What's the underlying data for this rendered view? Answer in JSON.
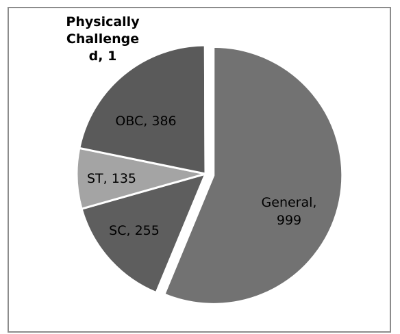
{
  "chart_data": {
    "type": "pie",
    "title": "",
    "slices": [
      {
        "label": "General",
        "value": 999,
        "color": "#727272",
        "label_lines": [
          "General,",
          "999"
        ]
      },
      {
        "label": "SC",
        "value": 255,
        "color": "#5e5e5e",
        "label_lines": [
          "SC, 255"
        ]
      },
      {
        "label": "ST",
        "value": 135,
        "color": "#a4a4a4",
        "label_lines": [
          "ST, 135"
        ]
      },
      {
        "label": "OBC",
        "value": 386,
        "color": "#5a5a5a",
        "label_lines": [
          "OBC, 386"
        ]
      },
      {
        "label": "Physically Challenged",
        "value": 1,
        "color": "#4a4a4a",
        "label_lines": [
          "Physically",
          "Challenge",
          "d, 1"
        ]
      }
    ],
    "exploded_slice": "General",
    "legend": "none",
    "data_labels": "category, value"
  }
}
